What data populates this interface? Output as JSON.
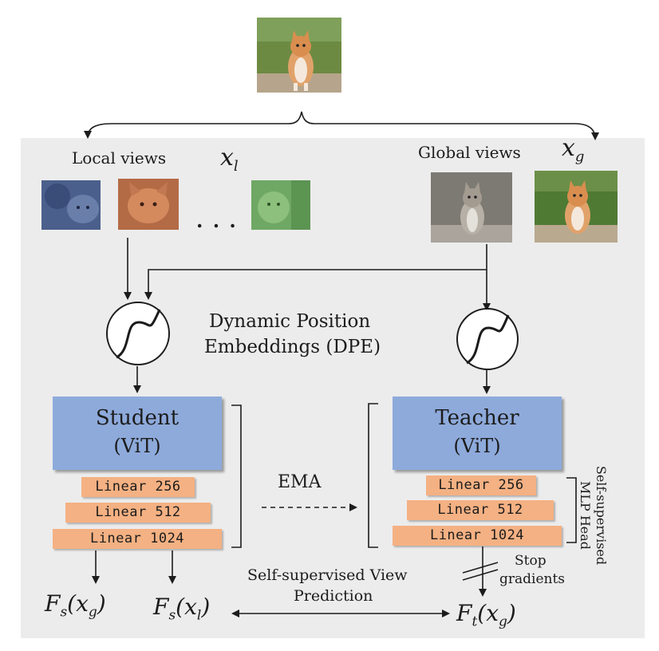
{
  "views": {
    "local_label": "Local views",
    "local_symbol": "x",
    "local_sub": "l",
    "global_label": "Global views",
    "global_symbol": "x",
    "global_sub": "g",
    "ellipsis": ". . ."
  },
  "dpe": {
    "line1": "Dynamic Position",
    "line2": "Embeddings (DPE)"
  },
  "student": {
    "title": "Student",
    "subtitle": "(ViT)",
    "layers": [
      "Linear 256",
      "Linear 512",
      "Linear 1024"
    ]
  },
  "teacher": {
    "title": "Teacher",
    "subtitle": "(ViT)",
    "layers": [
      "Linear 256",
      "Linear 512",
      "Linear 1024"
    ]
  },
  "ema": "EMA",
  "mlp_head": {
    "line1": "Self-supervised",
    "line2": "MLP Head"
  },
  "stop": {
    "line1": "Stop",
    "line2": "gradients"
  },
  "prediction": {
    "line1": "Self-supervised View",
    "line2": "Prediction"
  },
  "outputs": {
    "student_global": {
      "F": "F",
      "sub": "s",
      "x": "x",
      "xsub": "g"
    },
    "student_local": {
      "F": "F",
      "sub": "s",
      "x": "x",
      "xsub": "l"
    },
    "teacher_global": {
      "F": "F",
      "sub": "t",
      "x": "x",
      "xsub": "g"
    }
  },
  "colors": {
    "panel": "#ececec",
    "vit": "#8eaadb",
    "linear": "#f4b183"
  }
}
